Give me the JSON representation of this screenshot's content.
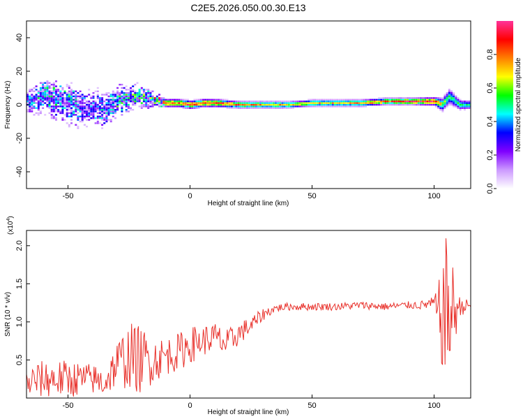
{
  "chart_data": [
    {
      "type": "heatmap",
      "title": "C2E5.2026.050.00.30.E13",
      "xlabel": "Height of straight line (km)",
      "ylabel": "Frequency (Hz)",
      "xlim": [
        -67,
        115
      ],
      "ylim": [
        -50,
        50
      ],
      "xticks": [
        -50,
        0,
        50,
        100
      ],
      "yticks": [
        -40,
        -20,
        0,
        20,
        40
      ],
      "grid": false,
      "colorbar": {
        "label": "Normalized spectral amplitude",
        "range": [
          0,
          1
        ],
        "ticks": [
          "0.0",
          "0.2",
          "0.4",
          "0.6",
          "0.8"
        ],
        "tick_values": [
          0.0,
          0.2,
          0.4,
          0.6,
          0.8
        ],
        "colormap": [
          "#ffffff",
          "#cc99ff",
          "#7f00ff",
          "#0000ff",
          "#00ffff",
          "#00ff00",
          "#ffff00",
          "#ff7f00",
          "#ff0000",
          "#ff3399"
        ]
      },
      "ridge": {
        "description_x": [
          -66,
          -60,
          -55,
          -50,
          -45,
          -40,
          -35,
          -30,
          -25,
          -20,
          -15,
          -10,
          -5,
          0,
          5,
          10,
          20,
          30,
          40,
          50,
          60,
          70,
          80,
          90,
          100,
          103,
          106,
          110,
          115
        ],
        "center_freq": [
          3,
          5,
          3,
          1,
          -2,
          -1,
          -4,
          3,
          4,
          5,
          3,
          1,
          1,
          0,
          1,
          1,
          0,
          0,
          0,
          1,
          1,
          1,
          2,
          2,
          2,
          0,
          5,
          0,
          0
        ],
        "amplitude": [
          0.4,
          0.5,
          0.45,
          0.5,
          0.35,
          0.45,
          0.4,
          0.5,
          0.5,
          0.55,
          0.7,
          0.85,
          0.8,
          0.9,
          0.85,
          0.85,
          0.8,
          0.75,
          0.7,
          0.7,
          0.7,
          0.75,
          0.8,
          0.9,
          0.9,
          0.6,
          0.5,
          0.5,
          0.5
        ],
        "spread": [
          6,
          8,
          9,
          10,
          9,
          8,
          8,
          7,
          6,
          5,
          3,
          2,
          2,
          2,
          2,
          2,
          1.5,
          1.5,
          1.5,
          1.5,
          1.5,
          1.5,
          1.5,
          1.5,
          2,
          4,
          5,
          3,
          2
        ]
      }
    },
    {
      "type": "line",
      "xlabel": "Height of straight line (km)",
      "ylabel": "SNR (10 * v/v)",
      "y_multiplier": "(x10",
      "y_multiplier_exp": "4",
      "y_multiplier_close": ")",
      "xlim": [
        -67,
        115
      ],
      "ylim": [
        0,
        2.2
      ],
      "xticks": [
        -50,
        0,
        50,
        100
      ],
      "yticks": [
        0.5,
        1.0,
        1.5,
        2.0
      ],
      "ytick_labels": [
        "0.5",
        "1.0",
        "1.5",
        "2.0"
      ],
      "grid": false,
      "series": [
        {
          "color": "#e8302a",
          "x": [
            -67,
            -60,
            -50,
            -40,
            -35,
            -30,
            -25,
            -20,
            -15,
            -10,
            -5,
            0,
            5,
            10,
            15,
            20,
            25,
            30,
            35,
            40,
            50,
            60,
            70,
            80,
            90,
            95,
            100,
            102,
            105,
            107,
            110,
            115
          ],
          "y": [
            0.2,
            0.25,
            0.25,
            0.25,
            0.2,
            0.45,
            0.55,
            0.5,
            0.5,
            0.55,
            0.6,
            0.7,
            0.75,
            0.8,
            0.7,
            0.85,
            0.95,
            1.1,
            1.18,
            1.2,
            1.2,
            1.2,
            1.22,
            1.2,
            1.22,
            1.22,
            1.25,
            1.05,
            1.15,
            1.1,
            1.2,
            1.22
          ],
          "noise": [
            0.2,
            0.25,
            0.25,
            0.2,
            0.2,
            0.3,
            0.45,
            0.45,
            0.3,
            0.25,
            0.25,
            0.25,
            0.2,
            0.2,
            0.2,
            0.15,
            0.12,
            0.08,
            0.05,
            0.05,
            0.05,
            0.05,
            0.05,
            0.05,
            0.05,
            0.06,
            0.08,
            0.5,
            1.0,
            0.8,
            0.15,
            0.05
          ]
        }
      ]
    }
  ]
}
